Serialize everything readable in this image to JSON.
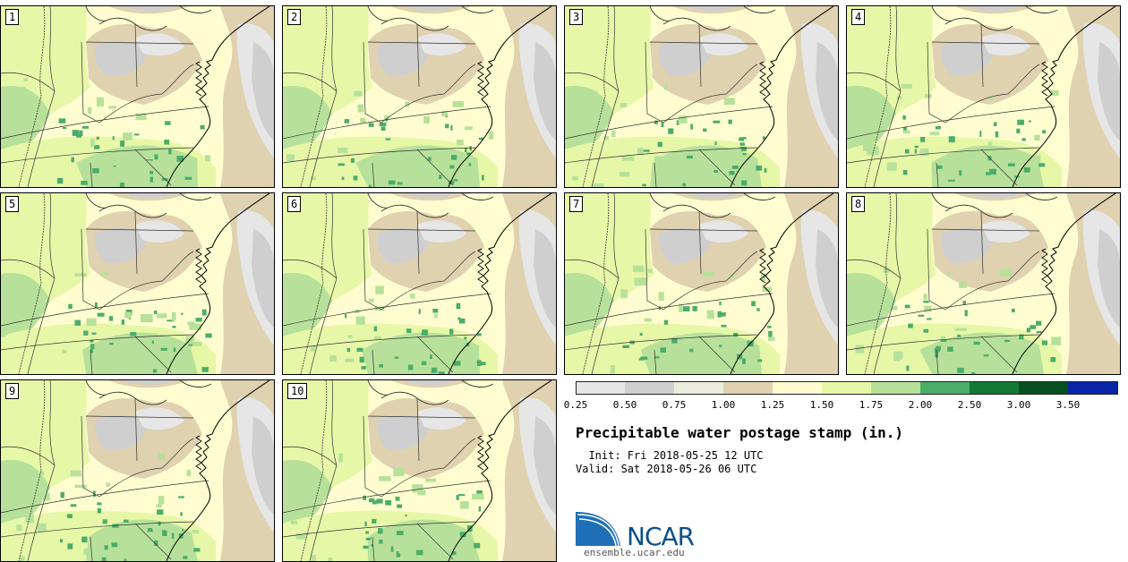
{
  "panels": [
    {
      "label": "1"
    },
    {
      "label": "2"
    },
    {
      "label": "3"
    },
    {
      "label": "4"
    },
    {
      "label": "5"
    },
    {
      "label": "6"
    },
    {
      "label": "7"
    },
    {
      "label": "8"
    },
    {
      "label": "9"
    },
    {
      "label": "10"
    }
  ],
  "colorbar": {
    "bins": [
      {
        "from": 0.25,
        "to": 0.5,
        "color": "#e6e6e6"
      },
      {
        "from": 0.5,
        "to": 0.75,
        "color": "#cfcfcf"
      },
      {
        "from": 0.75,
        "to": 1.0,
        "color": "#ededde"
      },
      {
        "from": 1.0,
        "to": 1.25,
        "color": "#e0d2b0"
      },
      {
        "from": 1.25,
        "to": 1.5,
        "color": "#fffdd0"
      },
      {
        "from": 1.5,
        "to": 1.75,
        "color": "#e7f7a8"
      },
      {
        "from": 1.75,
        "to": 2.0,
        "color": "#b7e19a"
      },
      {
        "from": 2.0,
        "to": 2.5,
        "color": "#4bad6a"
      },
      {
        "from": 2.5,
        "to": 3.0,
        "color": "#127a35"
      },
      {
        "from": 3.0,
        "to": 3.5,
        "color": "#06501f"
      },
      {
        "from": 3.5,
        "to": 4.0,
        "color": "#0a25a8"
      }
    ],
    "tick_labels": [
      "0.25",
      "0.50",
      "0.75",
      "1.00",
      "1.25",
      "1.50",
      "1.75",
      "2.00",
      "2.50",
      "3.00",
      "3.50"
    ]
  },
  "title": "Precipitable water postage stamp (in.)",
  "init": "  Init: Fri 2018-05-25 12 UTC",
  "valid": "Valid: Sat 2018-05-26 06 UTC",
  "logo": {
    "name": "NCAR",
    "url": "ensemble.ucar.edu"
  }
}
